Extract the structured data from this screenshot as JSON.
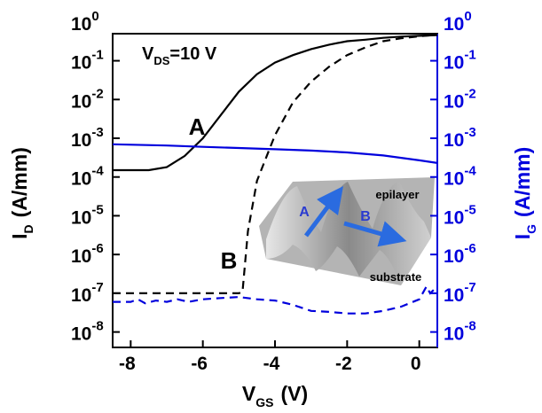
{
  "chart_data": {
    "type": "line",
    "y_scale": "log",
    "x_label": {
      "text": "V",
      "subscript": "GS",
      "unit": "(V)"
    },
    "y_label": {
      "text": "I",
      "subscript": "D",
      "unit": "(A/mm)"
    },
    "y2_label": {
      "text": "I",
      "subscript": "G",
      "unit": "(A/mm)"
    },
    "condition": {
      "text": "V",
      "subscript": "DS",
      "rest": "=10 V"
    },
    "axis_color": "#000000",
    "y2_color": "#0000dd",
    "xlim": [
      -8.5,
      0.5
    ],
    "xticks": [
      -8,
      -6,
      -4,
      -2,
      0
    ],
    "ylim": [
      4e-09,
      0.5
    ],
    "yticks": [
      {
        "value": 1,
        "label": "10",
        "exponent": 0
      },
      {
        "value": 0.1,
        "label": "10",
        "exponent": -1
      },
      {
        "value": 0.01,
        "label": "10",
        "exponent": -2
      },
      {
        "value": 0.001,
        "label": "10",
        "exponent": -3
      },
      {
        "value": 0.0001,
        "label": "10",
        "exponent": -4
      },
      {
        "value": 1e-05,
        "label": "10",
        "exponent": -5
      },
      {
        "value": 1e-06,
        "label": "10",
        "exponent": -6
      },
      {
        "value": 1e-07,
        "label": "10",
        "exponent": -7
      },
      {
        "value": 1e-08,
        "label": "10",
        "exponent": -8
      }
    ],
    "y2lim": [
      4e-09,
      0.5
    ],
    "y2ticks": [
      {
        "value": 1,
        "label": "10",
        "exponent": 0
      },
      {
        "value": 0.1,
        "label": "10",
        "exponent": -1
      },
      {
        "value": 0.01,
        "label": "10",
        "exponent": -2
      },
      {
        "value": 0.001,
        "label": "10",
        "exponent": -3
      },
      {
        "value": 0.0001,
        "label": "10",
        "exponent": -4
      },
      {
        "value": 1e-05,
        "label": "10",
        "exponent": -5
      },
      {
        "value": 1e-06,
        "label": "10",
        "exponent": -6
      },
      {
        "value": 1e-07,
        "label": "10",
        "exponent": -7
      },
      {
        "value": 1e-08,
        "label": "10",
        "exponent": -8
      }
    ],
    "series": [
      {
        "label": "A",
        "color": "#000000",
        "dash": false,
        "x": [
          -8.5,
          -8,
          -7.5,
          -7,
          -6.5,
          -6,
          -5.5,
          -5,
          -4.5,
          -4,
          -3.5,
          -3,
          -2.5,
          -2,
          -1.5,
          -1,
          -0.5,
          0,
          0.5
        ],
        "values": [
          0.00015,
          0.00015,
          0.00015,
          0.00018,
          0.00035,
          0.001,
          0.004,
          0.016,
          0.045,
          0.09,
          0.14,
          0.2,
          0.26,
          0.32,
          0.35,
          0.39,
          0.42,
          0.44,
          0.46
        ]
      },
      {
        "label": "B",
        "color": "#000000",
        "dash": true,
        "x": [
          -8.5,
          -8,
          -7,
          -6,
          -5,
          -4.9,
          -4.75,
          -4.5,
          -4,
          -3.5,
          -3,
          -2.5,
          -2,
          -1.5,
          -1,
          -0.5,
          0,
          0.5
        ],
        "values": [
          1e-07,
          1e-07,
          1e-07,
          1e-07,
          1e-07,
          1.1e-07,
          4e-06,
          8e-05,
          0.0012,
          0.0085,
          0.029,
          0.07,
          0.14,
          0.22,
          0.32,
          0.38,
          0.43,
          0.47
        ]
      },
      {
        "axis": "y2",
        "color": "#0000dd",
        "dash": false,
        "x": [
          -8.5,
          -7,
          -6,
          -5,
          -4,
          -3,
          -2,
          -1,
          0,
          0.5
        ],
        "values": [
          0.0007,
          0.00065,
          0.0006,
          0.00056,
          0.00052,
          0.00048,
          0.00043,
          0.00036,
          0.00027,
          0.00023
        ]
      },
      {
        "axis": "y2",
        "color": "#0000dd",
        "dash": true,
        "x": [
          -8.5,
          -8,
          -7.8,
          -7.6,
          -7.3,
          -7,
          -6.7,
          -6.4,
          -6,
          -5.5,
          -5,
          -4.5,
          -4,
          -3.5,
          -3,
          -2.5,
          -2,
          -1.5,
          -1,
          -0.5,
          0,
          0.2,
          0.3,
          0.5
        ],
        "values": [
          6e-08,
          6e-08,
          7e-08,
          5.5e-08,
          6.5e-08,
          6e-08,
          7e-08,
          6e-08,
          7e-08,
          7.5e-08,
          8e-08,
          7e-08,
          6.5e-08,
          5e-08,
          3.5e-08,
          3.3e-08,
          3e-08,
          3e-08,
          3.5e-08,
          4.5e-08,
          7e-08,
          1.5e-07,
          1e-07,
          1.5e-07
        ]
      }
    ],
    "inset": {
      "labels": [
        "epilayer",
        "substrate"
      ],
      "arrows": [
        "A",
        "B"
      ]
    }
  }
}
